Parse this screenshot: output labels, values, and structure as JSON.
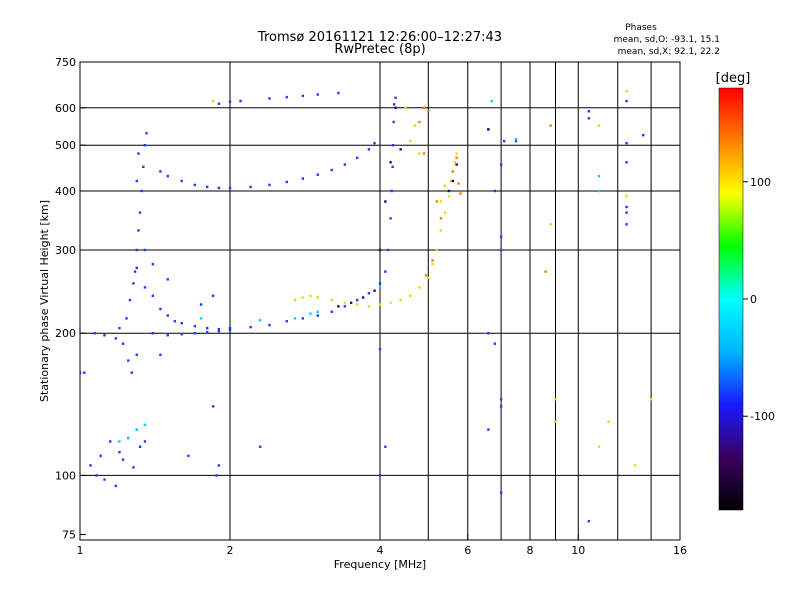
{
  "chart_data": {
    "type": "scatter",
    "title": "Tromsø 20161121 12:26:00–12:27:43",
    "subtitle": "RwPretec (8p)",
    "stats": {
      "heading": "Phases",
      "line1": "mean, sd,O: -93.1, 15.1",
      "line2": "mean, sd,X: 92.1, 22.2"
    },
    "xlabel": "Frequency [MHz]",
    "ylabel": "Stationary phase Virtual Height [km]",
    "x_scale": "log",
    "y_scale": "log",
    "xlim": [
      1,
      16
    ],
    "ylim": [
      73,
      750
    ],
    "x_ticks": [
      1,
      2,
      4,
      6,
      8,
      10,
      16
    ],
    "y_ticks": [
      75,
      100,
      200,
      300,
      400,
      500,
      600,
      750
    ],
    "x_grid": [
      2,
      4,
      6,
      8,
      10
    ],
    "y_grid": [
      100,
      200,
      300,
      400,
      500,
      600
    ],
    "x_minor_lines": [
      5,
      7,
      9,
      12,
      14
    ],
    "grid": true,
    "colorbar": {
      "label": "[deg]",
      "range": [
        -180,
        180
      ],
      "ticks": [
        100,
        0,
        -100
      ],
      "colors": [
        "#000000",
        "#3a0060",
        "#1a1aff",
        "#00b4ff",
        "#00ffff",
        "#00ff00",
        "#ffff00",
        "#ff8000",
        "#ff0000"
      ]
    },
    "series": [
      {
        "points": [
          [
            1.0,
            165
          ],
          [
            1.02,
            165
          ],
          [
            1.05,
            105
          ],
          [
            1.1,
            110
          ],
          [
            1.15,
            118
          ],
          [
            1.2,
            112
          ],
          [
            1.25,
            120
          ],
          [
            1.3,
            125
          ],
          [
            1.35,
            118
          ],
          [
            1.08,
            100
          ],
          [
            1.12,
            98
          ],
          [
            1.18,
            95
          ],
          [
            1.22,
            108
          ],
          [
            1.28,
            104
          ],
          [
            1.32,
            115
          ],
          [
            1.07,
            200
          ],
          [
            1.12,
            198
          ],
          [
            1.18,
            195
          ],
          [
            1.22,
            190
          ],
          [
            1.25,
            175
          ],
          [
            1.27,
            165
          ],
          [
            1.3,
            180
          ],
          [
            1.2,
            205
          ],
          [
            1.24,
            215
          ],
          [
            1.26,
            235
          ],
          [
            1.28,
            255
          ],
          [
            1.29,
            270
          ],
          [
            1.3,
            300
          ],
          [
            1.31,
            330
          ],
          [
            1.32,
            360
          ],
          [
            1.33,
            400
          ],
          [
            1.34,
            450
          ],
          [
            1.35,
            500
          ],
          [
            1.36,
            530
          ],
          [
            1.31,
            480
          ],
          [
            1.3,
            420
          ],
          [
            1.35,
            250
          ],
          [
            1.4,
            240
          ],
          [
            1.45,
            225
          ],
          [
            1.5,
            218
          ],
          [
            1.55,
            212
          ],
          [
            1.6,
            210
          ],
          [
            1.7,
            207
          ],
          [
            1.8,
            205
          ],
          [
            1.9,
            204
          ],
          [
            2.0,
            205
          ],
          [
            2.2,
            206
          ],
          [
            2.4,
            208
          ],
          [
            2.6,
            212
          ],
          [
            2.8,
            215
          ],
          [
            3.0,
            218
          ],
          [
            3.2,
            222
          ],
          [
            3.4,
            228
          ],
          [
            3.6,
            235
          ],
          [
            3.8,
            243
          ],
          [
            4.0,
            255
          ],
          [
            4.1,
            270
          ],
          [
            4.15,
            300
          ],
          [
            4.2,
            350
          ],
          [
            4.22,
            400
          ],
          [
            4.24,
            450
          ],
          [
            4.25,
            500
          ],
          [
            4.26,
            560
          ],
          [
            4.27,
            610
          ],
          [
            4.3,
            630
          ],
          [
            1.4,
            200
          ],
          [
            1.5,
            198
          ],
          [
            1.6,
            199
          ],
          [
            1.7,
            200
          ],
          [
            1.8,
            201
          ],
          [
            1.9,
            202
          ],
          [
            2.0,
            203
          ],
          [
            1.45,
            440
          ],
          [
            1.5,
            430
          ],
          [
            1.6,
            420
          ],
          [
            1.7,
            412
          ],
          [
            1.8,
            408
          ],
          [
            1.9,
            406
          ],
          [
            2.0,
            406
          ],
          [
            2.2,
            408
          ],
          [
            2.4,
            412
          ],
          [
            2.6,
            418
          ],
          [
            2.8,
            425
          ],
          [
            3.0,
            433
          ],
          [
            3.2,
            443
          ],
          [
            3.4,
            455
          ],
          [
            3.6,
            470
          ],
          [
            3.8,
            490
          ],
          [
            3.9,
            505
          ],
          [
            1.9,
            612
          ],
          [
            2.0,
            618
          ],
          [
            2.1,
            620
          ],
          [
            2.4,
            628
          ],
          [
            2.6,
            632
          ],
          [
            2.8,
            636
          ],
          [
            3.0,
            640
          ],
          [
            3.3,
            645
          ],
          [
            1.3,
            275
          ],
          [
            1.35,
            300
          ],
          [
            1.4,
            280
          ],
          [
            1.5,
            260
          ],
          [
            1.75,
            230
          ],
          [
            1.85,
            240
          ],
          [
            1.45,
            180
          ],
          [
            1.65,
            110
          ],
          [
            1.85,
            140
          ],
          [
            1.88,
            100
          ],
          [
            1.9,
            105
          ],
          [
            2.3,
            115
          ],
          [
            4.0,
            185
          ],
          [
            4.0,
            100
          ],
          [
            4.1,
            115
          ],
          [
            6.6,
            200
          ],
          [
            6.8,
            190
          ],
          [
            7.0,
            145
          ],
          [
            7.0,
            140
          ],
          [
            7.0,
            92
          ],
          [
            6.6,
            125
          ],
          [
            7.0,
            455
          ],
          [
            7.0,
            320
          ],
          [
            7.0,
            300
          ],
          [
            6.8,
            400
          ],
          [
            6.6,
            540
          ],
          [
            7.5,
            510
          ],
          [
            7.1,
            510
          ],
          [
            10.5,
            80
          ],
          [
            10.5,
            570
          ],
          [
            10.5,
            590
          ],
          [
            12.5,
            505
          ],
          [
            12.5,
            370
          ],
          [
            12.5,
            360
          ],
          [
            12.5,
            340
          ],
          [
            12.5,
            460
          ],
          [
            13.5,
            525
          ],
          [
            12.5,
            620
          ]
        ],
        "color": "#1a3cff"
      },
      {
        "points": [
          [
            1.25,
            120
          ],
          [
            1.3,
            125
          ],
          [
            1.35,
            128
          ],
          [
            1.2,
            118
          ],
          [
            3.0,
            222
          ],
          [
            4.0,
            250
          ],
          [
            1.75,
            215
          ],
          [
            2.3,
            213
          ],
          [
            2.7,
            215
          ],
          [
            2.9,
            220
          ],
          [
            6.7,
            620
          ],
          [
            7.5,
            515
          ],
          [
            11.0,
            430
          ],
          [
            11.0,
            400
          ]
        ],
        "color": "#00d4ff"
      },
      {
        "points": [
          [
            2.7,
            235
          ],
          [
            2.8,
            238
          ],
          [
            2.9,
            240
          ],
          [
            3.0,
            238
          ],
          [
            3.2,
            235
          ],
          [
            3.4,
            232
          ],
          [
            3.6,
            230
          ],
          [
            3.8,
            228
          ],
          [
            4.0,
            230
          ],
          [
            4.2,
            232
          ],
          [
            4.4,
            235
          ],
          [
            4.6,
            240
          ],
          [
            4.8,
            250
          ],
          [
            5.0,
            262
          ],
          [
            5.1,
            280
          ],
          [
            5.2,
            300
          ],
          [
            5.3,
            330
          ],
          [
            5.4,
            360
          ],
          [
            5.5,
            390
          ],
          [
            5.55,
            420
          ],
          [
            5.6,
            440
          ],
          [
            5.65,
            460
          ],
          [
            5.7,
            480
          ],
          [
            5.4,
            410
          ],
          [
            5.3,
            380
          ],
          [
            4.8,
            480
          ],
          [
            4.6,
            510
          ],
          [
            4.7,
            550
          ],
          [
            4.5,
            600
          ],
          [
            9.0,
            130
          ],
          [
            9.0,
            145
          ],
          [
            8.8,
            340
          ],
          [
            12.5,
            650
          ],
          [
            12.5,
            390
          ],
          [
            14.0,
            145
          ],
          [
            13.0,
            105
          ],
          [
            11.0,
            550
          ],
          [
            11.0,
            115
          ],
          [
            1.85,
            620
          ],
          [
            11.5,
            130
          ]
        ],
        "color": "#e0e000"
      },
      {
        "points": [
          [
            4.9,
            600
          ],
          [
            5.0,
            590
          ],
          [
            4.8,
            560
          ],
          [
            5.2,
            380
          ],
          [
            5.3,
            350
          ],
          [
            5.6,
            440
          ],
          [
            5.7,
            470
          ],
          [
            4.95,
            265
          ],
          [
            5.1,
            285
          ],
          [
            4.9,
            480
          ],
          [
            8.6,
            270
          ],
          [
            8.8,
            550
          ],
          [
            5.8,
            395
          ],
          [
            5.75,
            415
          ]
        ],
        "color": "#ff7a00"
      },
      {
        "points": [
          [
            4.3,
            600
          ],
          [
            4.4,
            490
          ],
          [
            4.2,
            460
          ],
          [
            4.1,
            380
          ],
          [
            4.0,
            300
          ],
          [
            3.9,
            246
          ],
          [
            3.7,
            238
          ],
          [
            3.5,
            232
          ],
          [
            3.3,
            228
          ],
          [
            5.6,
            420
          ],
          [
            5.5,
            400
          ],
          [
            5.7,
            455
          ],
          [
            6.6,
            540
          ]
        ],
        "color": "#3a0070"
      }
    ]
  }
}
